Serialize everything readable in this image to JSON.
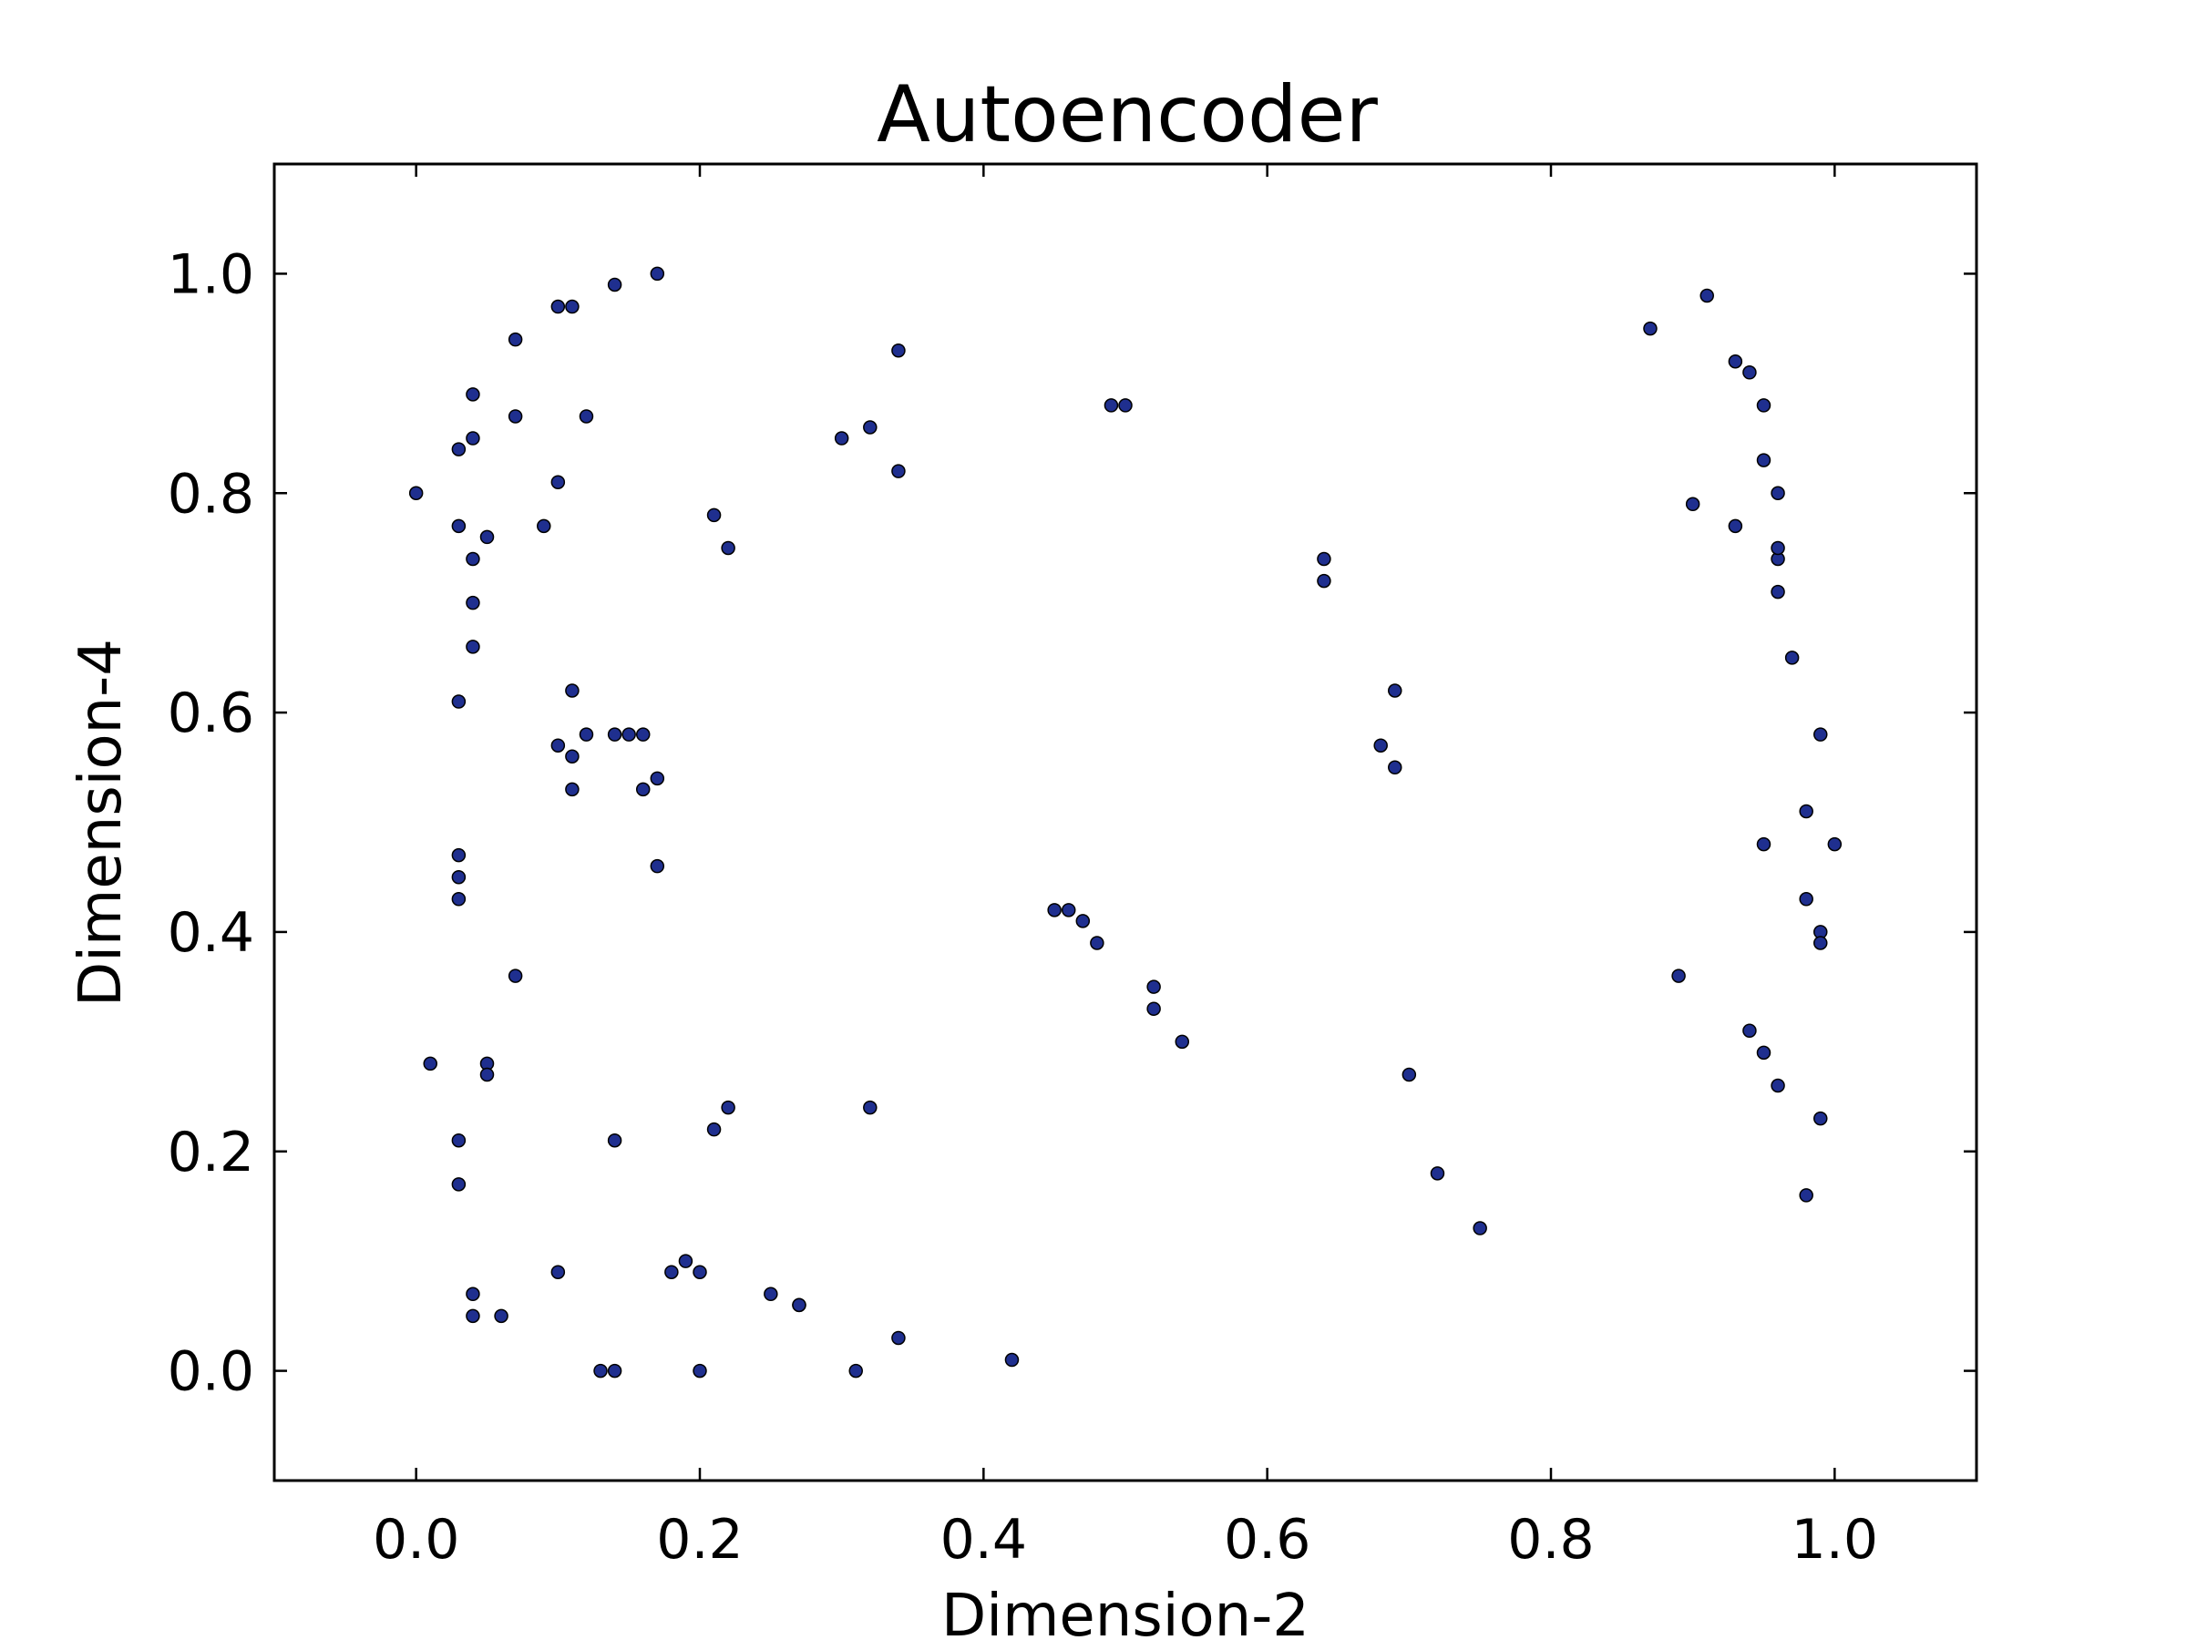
{
  "chart_data": {
    "type": "scatter",
    "title": "Autoencoder",
    "xlabel": "Dimension-2",
    "ylabel": "Dimension-4",
    "xlim": [
      -0.1,
      1.1
    ],
    "ylim": [
      -0.1,
      1.1
    ],
    "xticks": [
      "0.0",
      "0.2",
      "0.4",
      "0.6",
      "0.8",
      "1.0"
    ],
    "yticks": [
      "0.0",
      "0.2",
      "0.4",
      "0.6",
      "0.8",
      "1.0"
    ],
    "grid": false,
    "legend": "none",
    "colors": {
      "red_glyph": "#ff0000",
      "blue_glyph": "#0000ff",
      "point_fill": "#1f2f8f"
    },
    "glyph_note": "Each point is surrounded by a star glyph (4-point or 5-point) outlined in red or blue.",
    "series": [
      {
        "color": "red",
        "points": [
          {
            "x": 0.0,
            "y": 0.8,
            "glyph": "star4"
          },
          {
            "x": 0.03,
            "y": 0.77,
            "glyph": "star4"
          },
          {
            "x": 0.04,
            "y": 0.74,
            "glyph": "star4"
          },
          {
            "x": 0.04,
            "y": 0.7,
            "glyph": "star4"
          },
          {
            "x": 0.05,
            "y": 0.76,
            "glyph": "star4"
          },
          {
            "x": 0.03,
            "y": 0.84,
            "glyph": "star4"
          },
          {
            "x": 0.04,
            "y": 0.89,
            "glyph": "star4"
          },
          {
            "x": 0.04,
            "y": 0.85,
            "glyph": "star4"
          },
          {
            "x": 0.07,
            "y": 0.87,
            "glyph": "star4"
          },
          {
            "x": 0.07,
            "y": 0.94,
            "glyph": "star4"
          },
          {
            "x": 0.09,
            "y": 0.77,
            "glyph": "star4"
          },
          {
            "x": 0.1,
            "y": 0.81,
            "glyph": "star4"
          },
          {
            "x": 0.1,
            "y": 0.97,
            "glyph": "star4"
          },
          {
            "x": 0.11,
            "y": 0.97,
            "glyph": "star4"
          },
          {
            "x": 0.12,
            "y": 0.87,
            "glyph": "star4"
          },
          {
            "x": 0.14,
            "y": 0.99,
            "glyph": "star4"
          },
          {
            "x": 0.17,
            "y": 1.0,
            "glyph": "star4"
          },
          {
            "x": 0.21,
            "y": 0.78,
            "glyph": "star4"
          },
          {
            "x": 0.22,
            "y": 0.75,
            "glyph": "star4"
          },
          {
            "x": 0.3,
            "y": 0.85,
            "glyph": "star4"
          },
          {
            "x": 0.32,
            "y": 0.86,
            "glyph": "star4"
          },
          {
            "x": 0.34,
            "y": 0.93,
            "glyph": "star4"
          },
          {
            "x": 0.34,
            "y": 0.82,
            "glyph": "star4"
          },
          {
            "x": 0.49,
            "y": 0.88,
            "glyph": "star4"
          },
          {
            "x": 0.5,
            "y": 0.88,
            "glyph": "star4"
          },
          {
            "x": 0.03,
            "y": 0.61,
            "glyph": "star4"
          },
          {
            "x": 0.1,
            "y": 0.57,
            "glyph": "star4"
          },
          {
            "x": 0.11,
            "y": 0.56,
            "glyph": "star4"
          },
          {
            "x": 0.11,
            "y": 0.53,
            "glyph": "star4"
          },
          {
            "x": 0.12,
            "y": 0.58,
            "glyph": "star4"
          },
          {
            "x": 0.14,
            "y": 0.58,
            "glyph": "star4"
          },
          {
            "x": 0.15,
            "y": 0.58,
            "glyph": "star4"
          },
          {
            "x": 0.16,
            "y": 0.53,
            "glyph": "star4"
          },
          {
            "x": 0.17,
            "y": 0.54,
            "glyph": "star4"
          },
          {
            "x": 0.17,
            "y": 0.46,
            "glyph": "star4"
          },
          {
            "x": 0.03,
            "y": 0.47,
            "glyph": "star4"
          },
          {
            "x": 0.03,
            "y": 0.45,
            "glyph": "star4"
          },
          {
            "x": 0.03,
            "y": 0.43,
            "glyph": "star4"
          },
          {
            "x": 0.07,
            "y": 0.36,
            "glyph": "star4"
          },
          {
            "x": 0.01,
            "y": 0.28,
            "glyph": "star4"
          },
          {
            "x": 0.05,
            "y": 0.28,
            "glyph": "star4"
          },
          {
            "x": 0.05,
            "y": 0.27,
            "glyph": "star4"
          },
          {
            "x": 0.03,
            "y": 0.21,
            "glyph": "star4"
          },
          {
            "x": 0.03,
            "y": 0.17,
            "glyph": "star4"
          },
          {
            "x": 0.14,
            "y": 0.21,
            "glyph": "star4"
          },
          {
            "x": 0.32,
            "y": 0.24,
            "glyph": "star4"
          },
          {
            "x": 0.04,
            "y": 0.07,
            "glyph": "star4"
          },
          {
            "x": 0.04,
            "y": 0.05,
            "glyph": "star4"
          },
          {
            "x": 0.06,
            "y": 0.05,
            "glyph": "star4"
          },
          {
            "x": 0.1,
            "y": 0.09,
            "glyph": "star4"
          },
          {
            "x": 0.18,
            "y": 0.09,
            "glyph": "star4"
          },
          {
            "x": 0.19,
            "y": 0.1,
            "glyph": "star4"
          },
          {
            "x": 0.2,
            "y": 0.09,
            "glyph": "star4"
          },
          {
            "x": 0.25,
            "y": 0.07,
            "glyph": "star4"
          },
          {
            "x": 0.27,
            "y": 0.06,
            "glyph": "star4"
          },
          {
            "x": 0.27,
            "y": 0.06,
            "glyph": "star4"
          },
          {
            "x": 0.13,
            "y": 0.0,
            "glyph": "star4"
          },
          {
            "x": 0.14,
            "y": 0.0,
            "glyph": "star4"
          },
          {
            "x": 0.2,
            "y": 0.0,
            "glyph": "star4"
          },
          {
            "x": 0.31,
            "y": 0.0,
            "glyph": "star4"
          },
          {
            "x": 0.34,
            "y": 0.03,
            "glyph": "star4"
          },
          {
            "x": 0.42,
            "y": 0.01,
            "glyph": "star4"
          },
          {
            "x": 0.64,
            "y": 0.74,
            "glyph": "star5"
          },
          {
            "x": 0.69,
            "y": 0.62,
            "glyph": "star5"
          },
          {
            "x": 0.68,
            "y": 0.57,
            "glyph": "star5"
          },
          {
            "x": 0.46,
            "y": 0.42,
            "glyph": "star5"
          },
          {
            "x": 0.48,
            "y": 0.39,
            "glyph": "star5"
          },
          {
            "x": 0.52,
            "y": 0.35,
            "glyph": "star5"
          },
          {
            "x": 0.52,
            "y": 0.33,
            "glyph": "star5"
          },
          {
            "x": 0.7,
            "y": 0.27,
            "glyph": "star5"
          },
          {
            "x": 0.72,
            "y": 0.18,
            "glyph": "star5"
          },
          {
            "x": 0.75,
            "y": 0.13,
            "glyph": "star5"
          },
          {
            "x": 0.87,
            "y": 0.95,
            "glyph": "star5"
          },
          {
            "x": 0.91,
            "y": 0.98,
            "glyph": "star5"
          },
          {
            "x": 0.93,
            "y": 0.92,
            "glyph": "star5"
          },
          {
            "x": 0.94,
            "y": 0.91,
            "glyph": "star5"
          },
          {
            "x": 0.95,
            "y": 0.88,
            "glyph": "star5"
          },
          {
            "x": 0.95,
            "y": 0.83,
            "glyph": "star5"
          },
          {
            "x": 0.96,
            "y": 0.8,
            "glyph": "star5"
          },
          {
            "x": 0.9,
            "y": 0.79,
            "glyph": "star5"
          },
          {
            "x": 0.93,
            "y": 0.77,
            "glyph": "star5"
          },
          {
            "x": 0.96,
            "y": 0.74,
            "glyph": "star5"
          },
          {
            "x": 0.96,
            "y": 0.71,
            "glyph": "star5"
          },
          {
            "x": 0.97,
            "y": 0.65,
            "glyph": "star5"
          },
          {
            "x": 0.99,
            "y": 0.58,
            "glyph": "star5"
          },
          {
            "x": 1.0,
            "y": 0.48,
            "glyph": "star5"
          },
          {
            "x": 0.98,
            "y": 0.43,
            "glyph": "star5"
          },
          {
            "x": 0.99,
            "y": 0.4,
            "glyph": "star5"
          },
          {
            "x": 0.99,
            "y": 0.39,
            "glyph": "star5"
          },
          {
            "x": 0.89,
            "y": 0.36,
            "glyph": "star5"
          },
          {
            "x": 0.94,
            "y": 0.31,
            "glyph": "star5"
          },
          {
            "x": 0.96,
            "y": 0.26,
            "glyph": "star5"
          },
          {
            "x": 0.99,
            "y": 0.23,
            "glyph": "star5"
          },
          {
            "x": 0.98,
            "y": 0.16,
            "glyph": "star5"
          }
        ]
      },
      {
        "color": "blue",
        "points": [
          {
            "x": 0.04,
            "y": 0.66,
            "glyph": "star4"
          },
          {
            "x": 0.11,
            "y": 0.62,
            "glyph": "star4"
          },
          {
            "x": 0.16,
            "y": 0.58,
            "glyph": "star4"
          },
          {
            "x": 0.22,
            "y": 0.24,
            "glyph": "star4"
          },
          {
            "x": 0.21,
            "y": 0.22,
            "glyph": "star4"
          },
          {
            "x": 0.64,
            "y": 0.72,
            "glyph": "star5"
          },
          {
            "x": 0.69,
            "y": 0.55,
            "glyph": "star5"
          },
          {
            "x": 0.45,
            "y": 0.42,
            "glyph": "star5"
          },
          {
            "x": 0.47,
            "y": 0.41,
            "glyph": "star5"
          },
          {
            "x": 0.54,
            "y": 0.3,
            "glyph": "star5"
          },
          {
            "x": 0.96,
            "y": 0.75,
            "glyph": "star5"
          },
          {
            "x": 0.95,
            "y": 0.48,
            "glyph": "star5"
          },
          {
            "x": 0.98,
            "y": 0.51,
            "glyph": "star5"
          },
          {
            "x": 0.95,
            "y": 0.29,
            "glyph": "star5"
          }
        ]
      }
    ]
  }
}
